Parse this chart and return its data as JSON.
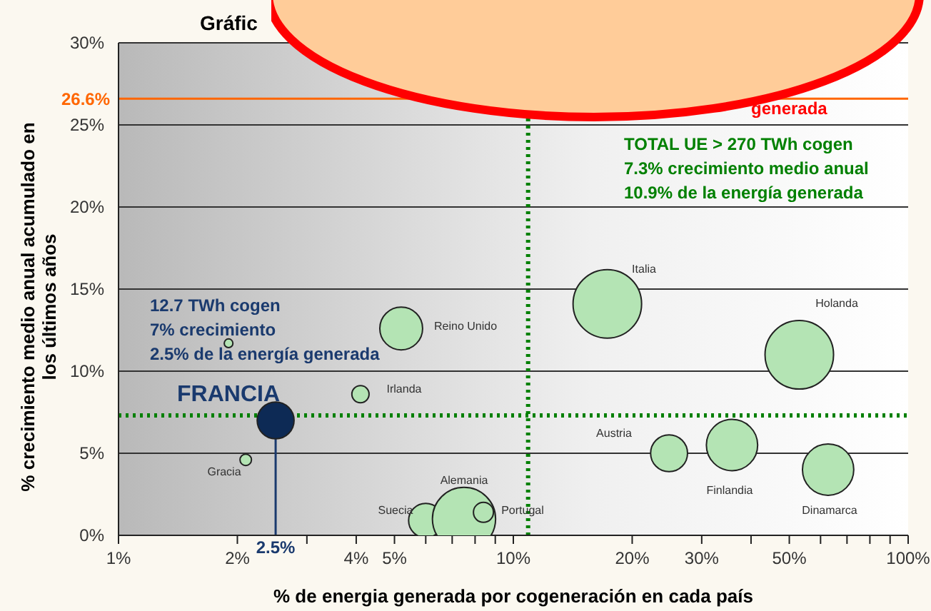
{
  "chart_data": {
    "type": "bubble",
    "title": "Gráfic",
    "xlabel": "% de energia generada por cogeneración en cada país",
    "ylabel": "% crecimiento medio anual acumulado en\nlos últimos años",
    "log": "x",
    "grid": "y",
    "xlim": [
      1,
      100
    ],
    "xticks": [
      {
        "value": 1,
        "label": "1%"
      },
      {
        "value": 2,
        "label": "2%"
      },
      {
        "value": 3,
        "label": null
      },
      {
        "value": 4,
        "label": "4%"
      },
      {
        "value": 5,
        "label": "5%"
      },
      {
        "value": 6,
        "label": null
      },
      {
        "value": 7,
        "label": null
      },
      {
        "value": 8,
        "label": null
      },
      {
        "value": 9,
        "label": null
      },
      {
        "value": 10,
        "label": "10%"
      },
      {
        "value": 20,
        "label": "20%"
      },
      {
        "value": 30,
        "label": "30%"
      },
      {
        "value": 40,
        "label": null
      },
      {
        "value": 50,
        "label": "50%"
      },
      {
        "value": 60,
        "label": null
      },
      {
        "value": 70,
        "label": null
      },
      {
        "value": 80,
        "label": null
      },
      {
        "value": 90,
        "label": null
      },
      {
        "value": 100,
        "label": "100%"
      }
    ],
    "ylim": [
      0,
      30
    ],
    "yticks": [
      {
        "value": 0,
        "label": "0%"
      },
      {
        "value": 5,
        "label": "5%"
      },
      {
        "value": 10,
        "label": "10%"
      },
      {
        "value": 15,
        "label": "15%"
      },
      {
        "value": 20,
        "label": "20%"
      },
      {
        "value": 25,
        "label": "25%"
      },
      {
        "value": 30,
        "label": "30%"
      }
    ],
    "x": [
      2.1,
      1.9,
      2.5,
      4.1,
      5.2,
      6.0,
      7.5,
      8.4,
      17.3,
      24.8,
      35.8,
      53,
      62.7
    ],
    "values": [
      4.6,
      11.7,
      7.0,
      8.6,
      12.6,
      0.9,
      1.0,
      1.4,
      14.1,
      5.0,
      5.5,
      11.0,
      4.0
    ],
    "sizes": [
      0.028,
      0.016,
      0.29,
      0.063,
      0.39,
      0.25,
      0.85,
      0.085,
      1,
      0.29,
      0.56,
      1,
      0.56
    ],
    "colors": [
      "#b4e4b4",
      "#b4e4b4",
      "#0d2a55",
      "#b4e4b4",
      "#b4e4b4",
      "#b4e4b4",
      "#b4e4b4",
      "#b4e4b4",
      "#b4e4b4",
      "#b4e4b4",
      "#b4e4b4",
      "#b4e4b4",
      "#b4e4b4"
    ],
    "ref_lines": [
      {
        "axis": "y",
        "value": 7.3,
        "label": null,
        "color": "#008000",
        "line_style": "dotted"
      },
      {
        "axis": "x",
        "value": 10.9,
        "label": null,
        "color": "#008000",
        "line_style": "dotted"
      },
      {
        "axis": "y",
        "value": 26.6,
        "label": "26.6%",
        "color": "#ff6600",
        "line_style": "solid"
      },
      {
        "axis": "x",
        "value": 2.5,
        "label": "2.5%",
        "color": "#1a3a6e",
        "line_style": "solid"
      }
    ],
    "annotations": [
      "generada",
      "TOTAL UE > 270 TWh cogen\n7.3% crecimiento medio anual\n10.9% de la energía generada",
      "12.7 TWh cogen\n7% crecimiento\n2.5% de la energía generada",
      "Gracia",
      "FRANCIA",
      "Irlanda",
      "Reino Unido",
      "Suecia",
      "Alemania",
      "Portugal",
      "Italia",
      "Austria",
      "Finlandia",
      "Holanda",
      "Dinamarca"
    ]
  }
}
